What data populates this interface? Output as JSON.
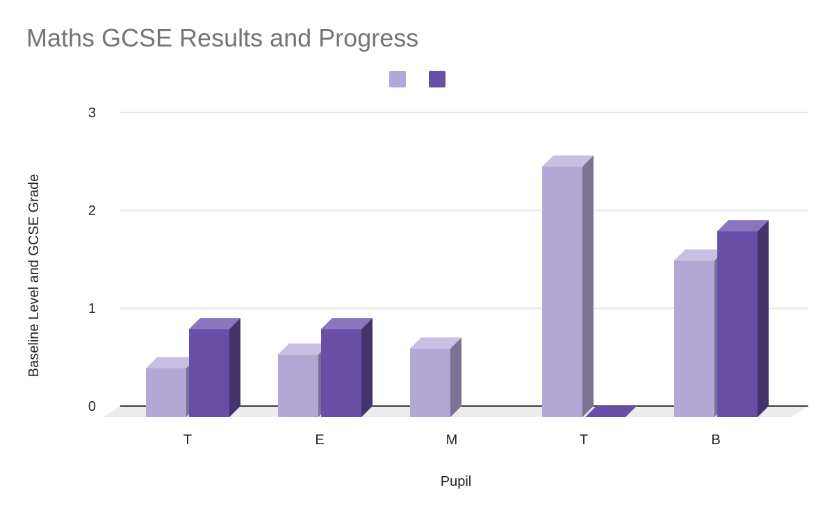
{
  "chart_data": {
    "type": "bar",
    "title": "Maths GCSE Results and Progress",
    "xlabel": "Pupil",
    "ylabel": "Baseline Level and GCSE Grade",
    "categories": [
      "T",
      "E",
      "M",
      "T",
      "B"
    ],
    "series": [
      {
        "values": [
          0.5,
          0.64,
          0.7,
          2.56,
          1.6
        ]
      },
      {
        "values": [
          0.9,
          0.9,
          null,
          0,
          1.9
        ]
      }
    ],
    "ylim": [
      0,
      3
    ],
    "yticks": [
      "0",
      "1",
      "2",
      "3"
    ],
    "grid": true,
    "legend_position": "top",
    "style": "3d",
    "colors": {
      "series1_front": "#b3a7d5",
      "series1_top": "#c8bfe3",
      "series1_side": "#7b7294",
      "series2_front": "#674ea7",
      "series2_top": "#8a76bf",
      "series2_side": "#43356c",
      "gridline": "#cccccc",
      "axis": "#000000",
      "floor": "#ececec",
      "title": "#757575"
    }
  }
}
